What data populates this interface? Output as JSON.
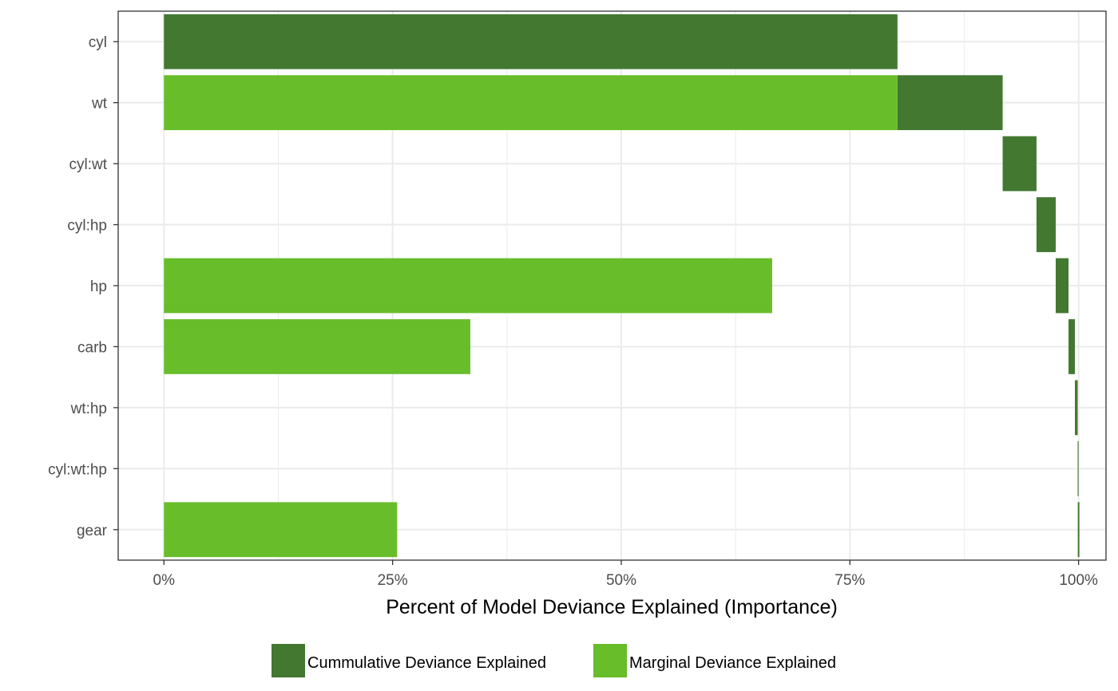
{
  "chart_data": {
    "type": "bar",
    "orientation": "horizontal",
    "categories": [
      "cyl",
      "wt",
      "cyl:wt",
      "cyl:hp",
      "hp",
      "carb",
      "wt:hp",
      "cyl:wt:hp",
      "gear"
    ],
    "series": [
      {
        "name": "Cummulative Deviance Explained",
        "color": "#427830",
        "ranges": [
          [
            0,
            80.2
          ],
          [
            80.2,
            91.7
          ],
          [
            91.7,
            95.4
          ],
          [
            95.4,
            97.5
          ],
          [
            97.5,
            98.9
          ],
          [
            98.9,
            99.6
          ],
          [
            99.6,
            99.9
          ],
          [
            99.9,
            100
          ],
          [
            100,
            100
          ]
        ]
      },
      {
        "name": "Marginal Deviance Explained",
        "color": "#68bd2a",
        "values": [
          null,
          80.2,
          null,
          null,
          66.5,
          33.5,
          null,
          null,
          25.5
        ]
      }
    ],
    "xlabel": "Percent of Model Deviance Explained (Importance)",
    "ylabel": "",
    "xlim": [
      -5,
      103
    ],
    "xticks": [
      0,
      25,
      50,
      75,
      100
    ],
    "xtick_labels": [
      "0%",
      "25%",
      "50%",
      "75%",
      "100%"
    ],
    "grid": true,
    "legend_position": "bottom"
  }
}
